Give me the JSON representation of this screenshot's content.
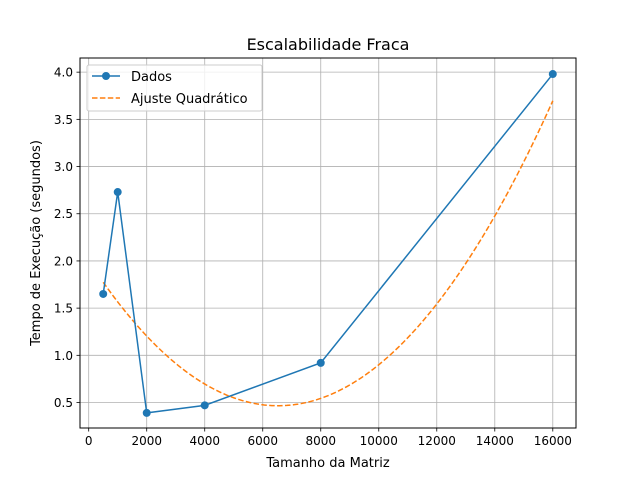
{
  "chart_data": {
    "type": "line",
    "title": "Escalabilidade Fraca",
    "xlabel": "Tamanho da Matriz",
    "ylabel": "Tempo de Execução (segundos)",
    "xlim": [
      -300,
      16800
    ],
    "ylim": [
      0.23,
      4.15
    ],
    "xticks": [
      0,
      2000,
      4000,
      6000,
      8000,
      10000,
      12000,
      14000,
      16000
    ],
    "yticks": [
      0.5,
      1.0,
      1.5,
      2.0,
      2.5,
      3.0,
      3.5,
      4.0
    ],
    "ytick_labels": [
      "0.5",
      "1.0",
      "1.5",
      "2.0",
      "2.5",
      "3.0",
      "3.5",
      "4.0"
    ],
    "grid": true,
    "legend_position": "upper-left",
    "series": [
      {
        "name": "Dados",
        "style": "solid-with-markers",
        "color": "#1f77b4",
        "x": [
          500,
          1000,
          2000,
          4000,
          8000,
          16000
        ],
        "y": [
          1.65,
          2.73,
          0.39,
          0.47,
          0.92,
          3.98
        ]
      },
      {
        "name": "Ajuste Quadrático",
        "style": "dashed",
        "color": "#ff7f0e",
        "fit": "quadratic",
        "x_range": [
          500,
          16000
        ],
        "coefficients": [
          2.0,
          -0.00047,
          3.6e-08
        ]
      }
    ]
  }
}
